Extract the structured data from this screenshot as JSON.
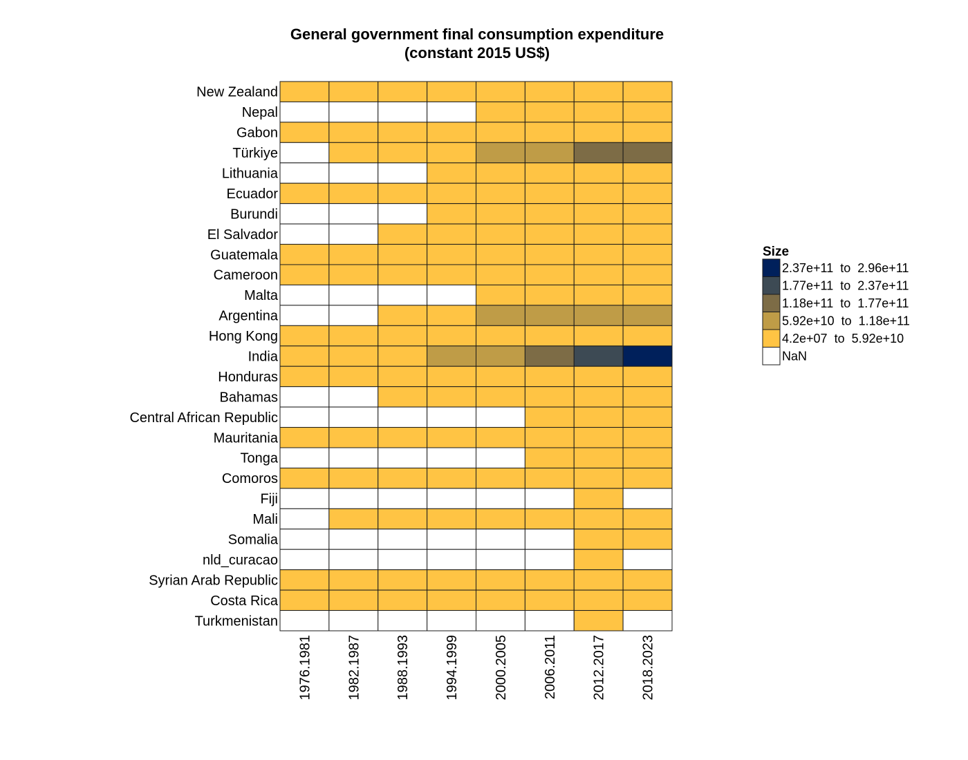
{
  "chart_data": {
    "type": "heatmap",
    "title": "General government final consumption expenditure",
    "subtitle": "(constant 2015 US$)",
    "x_categories": [
      "1976.1981",
      "1982.1987",
      "1988.1993",
      "1994.1999",
      "2000.2005",
      "2006.2011",
      "2012.2017",
      "2018.2023"
    ],
    "y_categories": [
      "New Zealand",
      "Nepal",
      "Gabon",
      "Türkiye",
      "Lithuania",
      "Ecuador",
      "Burundi",
      "El Salvador",
      "Guatemala",
      "Cameroon",
      "Malta",
      "Argentina",
      "Hong Kong",
      "India",
      "Honduras",
      "Bahamas",
      "Central African Republic",
      "Mauritania",
      "Tonga",
      "Comoros",
      "Fiji",
      "Mali",
      "Somalia",
      "nld_curacao",
      "Syrian Arab Republic",
      "Costa Rica",
      "Turkmenistan"
    ],
    "bins": [
      {
        "label": "2.37e+11  to  2.96e+11",
        "color": "#00205b"
      },
      {
        "label": "1.77e+11  to  2.37e+11",
        "color": "#3d4a54"
      },
      {
        "label": "1.18e+11  to  1.77e+11",
        "color": "#7d6c46"
      },
      {
        "label": "5.92e+10  to  1.18e+11",
        "color": "#bf9c47"
      },
      {
        "label": "4.2e+07  to  5.92e+10",
        "color": "#ffc444"
      },
      {
        "label": "NaN",
        "color": "#ffffff"
      }
    ],
    "legend_title": "Size",
    "legend_position": "right",
    "grid": false,
    "cells": [
      [
        4,
        4,
        4,
        4,
        4,
        4,
        4,
        4
      ],
      [
        5,
        5,
        5,
        5,
        4,
        4,
        4,
        4
      ],
      [
        4,
        4,
        4,
        4,
        4,
        4,
        4,
        4
      ],
      [
        5,
        4,
        4,
        4,
        3,
        3,
        2,
        2
      ],
      [
        5,
        5,
        5,
        4,
        4,
        4,
        4,
        4
      ],
      [
        4,
        4,
        4,
        4,
        4,
        4,
        4,
        4
      ],
      [
        5,
        5,
        5,
        4,
        4,
        4,
        4,
        4
      ],
      [
        5,
        5,
        4,
        4,
        4,
        4,
        4,
        4
      ],
      [
        4,
        4,
        4,
        4,
        4,
        4,
        4,
        4
      ],
      [
        4,
        4,
        4,
        4,
        4,
        4,
        4,
        4
      ],
      [
        5,
        5,
        5,
        5,
        4,
        4,
        4,
        4
      ],
      [
        5,
        5,
        4,
        4,
        3,
        3,
        3,
        3
      ],
      [
        4,
        4,
        4,
        4,
        4,
        4,
        4,
        4
      ],
      [
        4,
        4,
        4,
        3,
        3,
        2,
        1,
        0
      ],
      [
        4,
        4,
        4,
        4,
        4,
        4,
        4,
        4
      ],
      [
        5,
        5,
        4,
        4,
        4,
        4,
        4,
        4
      ],
      [
        5,
        5,
        5,
        5,
        5,
        4,
        4,
        4
      ],
      [
        4,
        4,
        4,
        4,
        4,
        4,
        4,
        4
      ],
      [
        5,
        5,
        5,
        5,
        5,
        4,
        4,
        4
      ],
      [
        4,
        4,
        4,
        4,
        4,
        4,
        4,
        4
      ],
      [
        5,
        5,
        5,
        5,
        5,
        5,
        4,
        5
      ],
      [
        5,
        4,
        4,
        4,
        4,
        4,
        4,
        4
      ],
      [
        5,
        5,
        5,
        5,
        5,
        5,
        4,
        4
      ],
      [
        5,
        5,
        5,
        5,
        5,
        5,
        4,
        5
      ],
      [
        4,
        4,
        4,
        4,
        4,
        4,
        4,
        4
      ],
      [
        4,
        4,
        4,
        4,
        4,
        4,
        4,
        4
      ],
      [
        5,
        5,
        5,
        5,
        5,
        5,
        4,
        5
      ]
    ]
  }
}
